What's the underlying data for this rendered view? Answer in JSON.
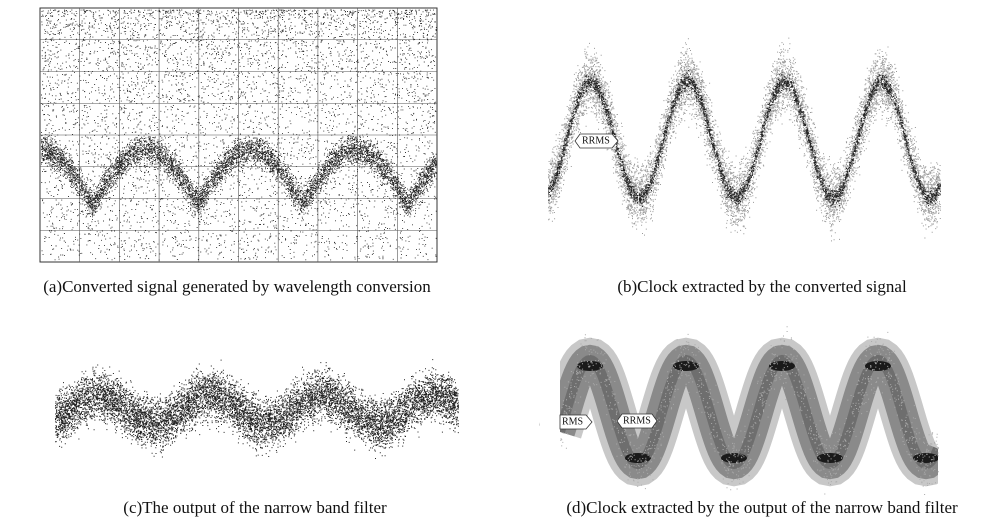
{
  "panels": [
    {
      "caption": "(a)Converted signal generated by wavelength conversion"
    },
    {
      "caption": "(b)Clock extracted by the converted signal",
      "markers": [
        "RRMS"
      ]
    },
    {
      "caption": "(c)The output of the narrow band filter"
    },
    {
      "caption": "(d)Clock extracted by the output of the narrow band filter",
      "markers": [
        "RMS",
        "RRMS"
      ]
    }
  ]
}
